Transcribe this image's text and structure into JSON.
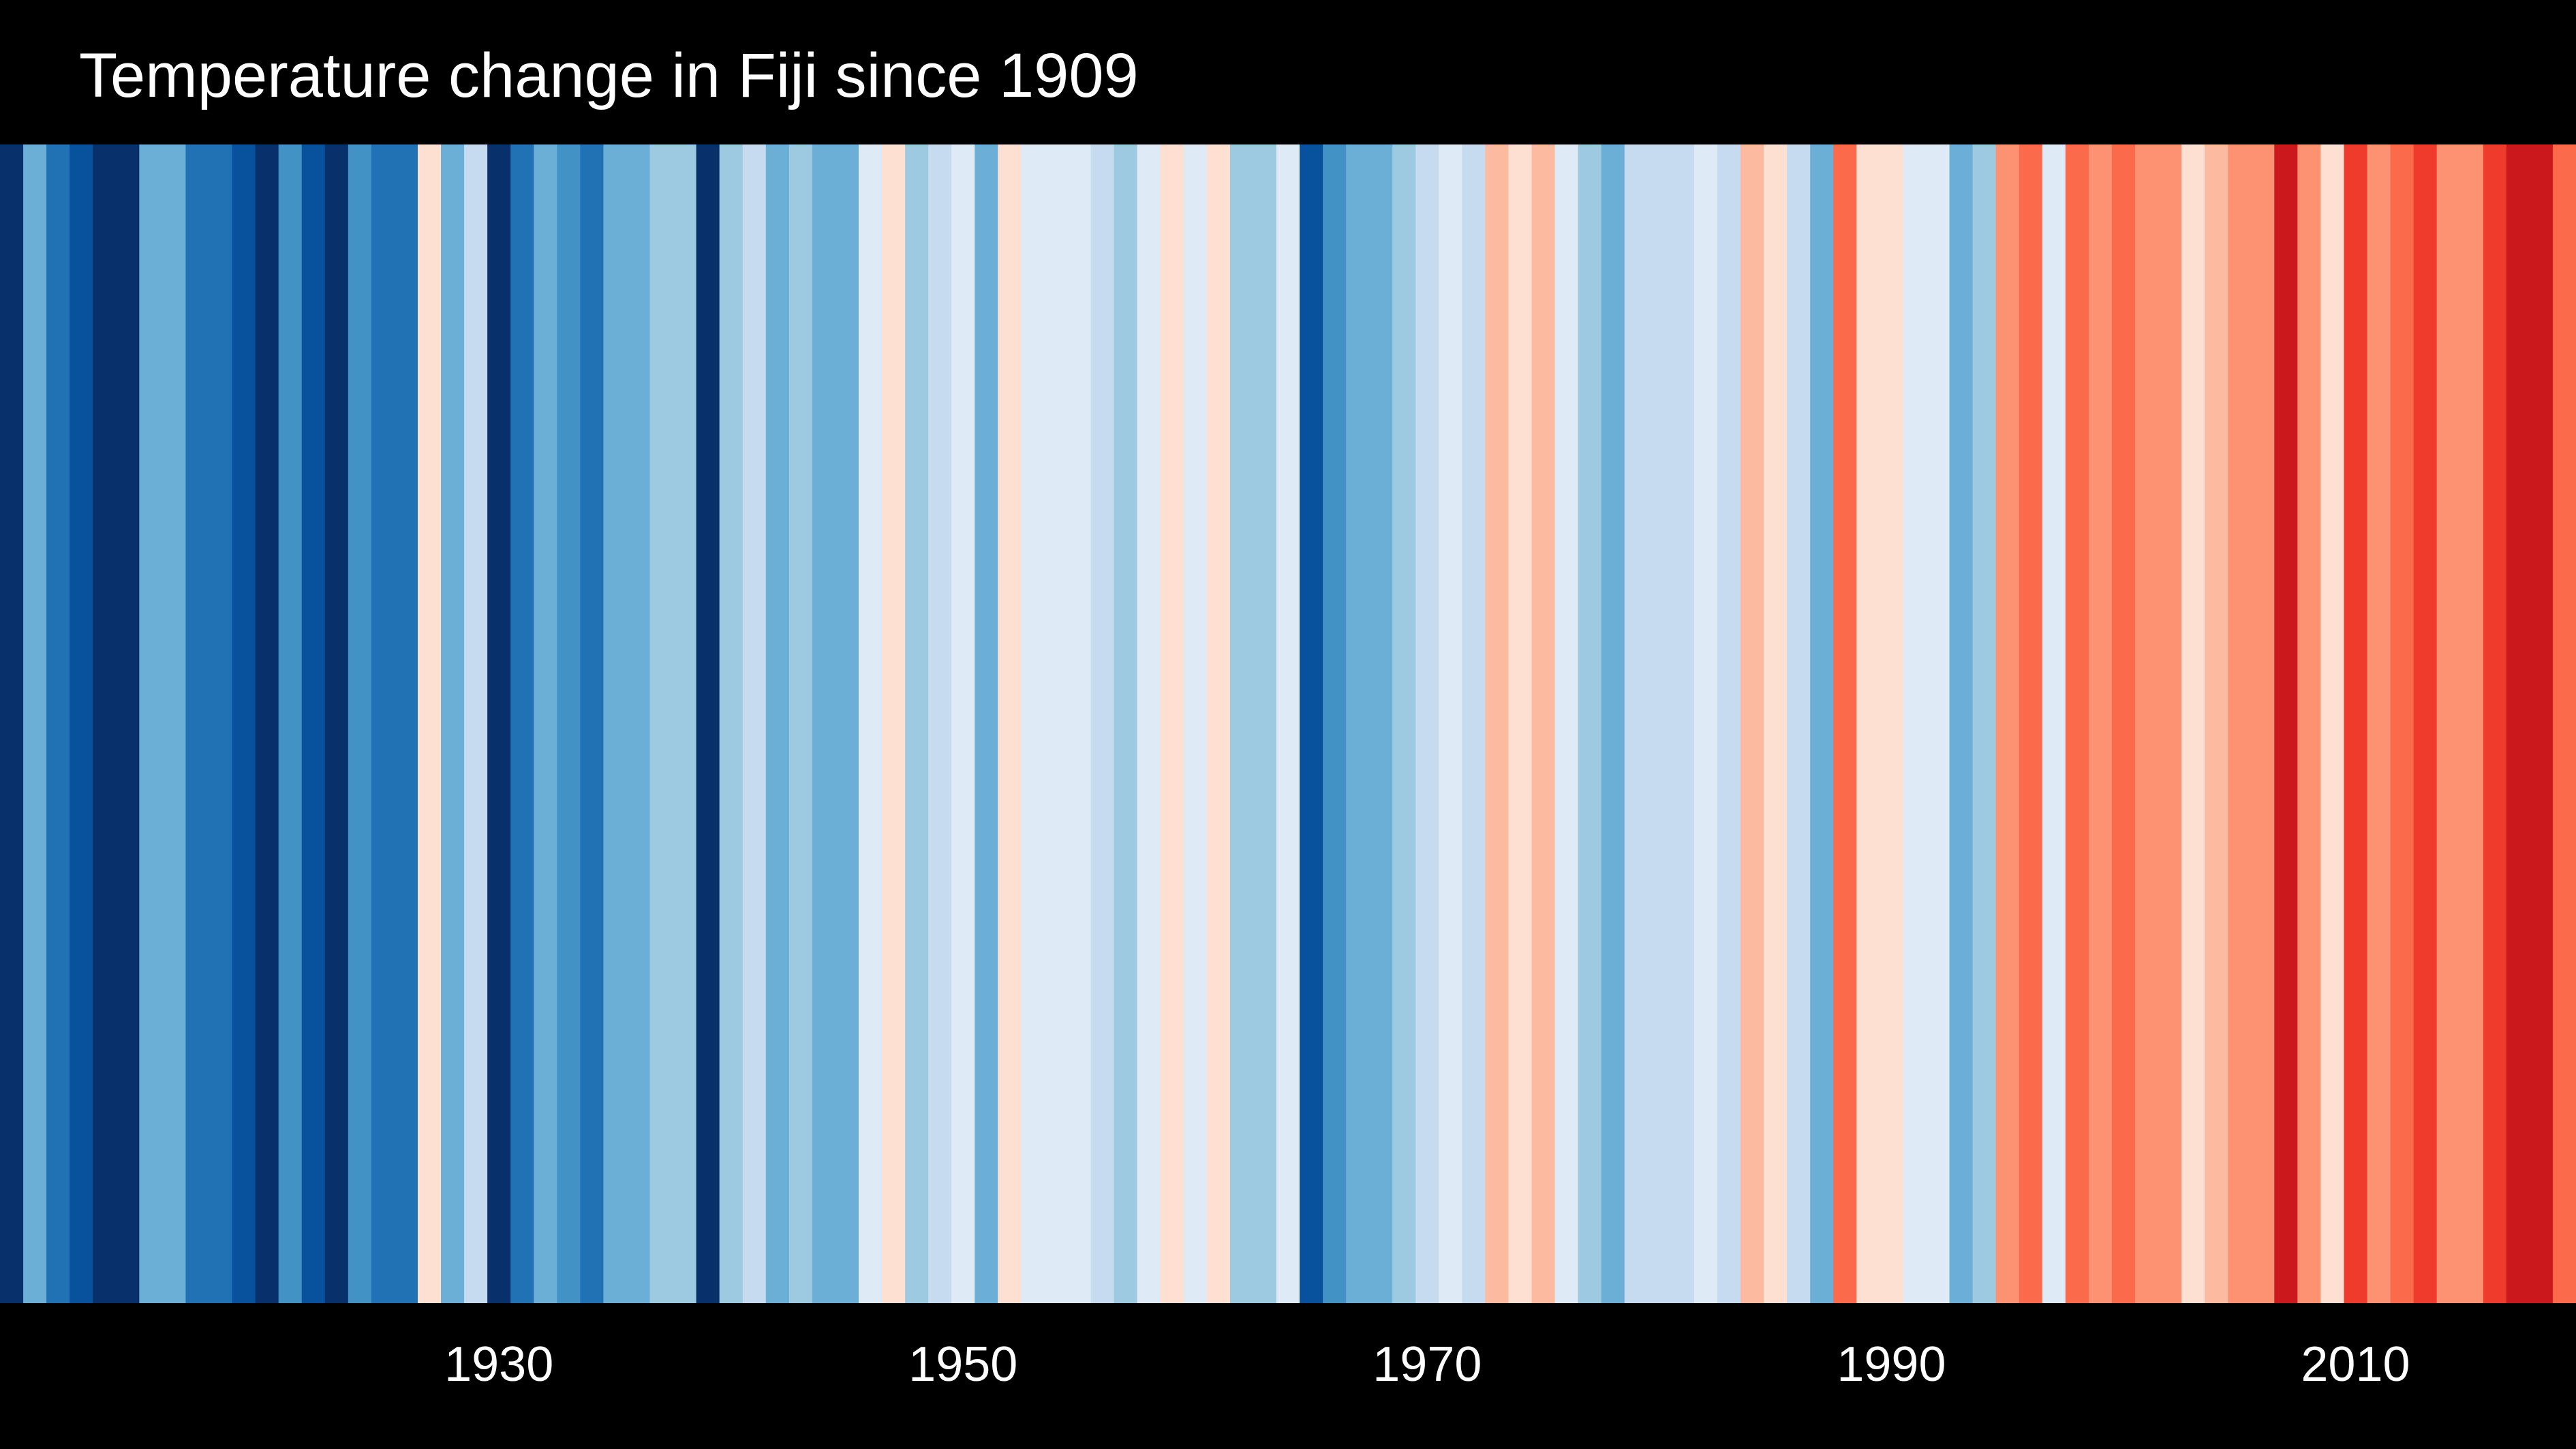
{
  "chart_data": {
    "type": "stripes",
    "title": "Temperature change in Fiji since 1909",
    "x": [
      1909,
      1910,
      1911,
      1912,
      1913,
      1914,
      1915,
      1916,
      1917,
      1918,
      1919,
      1920,
      1921,
      1922,
      1923,
      1924,
      1925,
      1926,
      1927,
      1928,
      1929,
      1930,
      1931,
      1932,
      1933,
      1934,
      1935,
      1936,
      1937,
      1938,
      1939,
      1940,
      1941,
      1942,
      1943,
      1944,
      1945,
      1946,
      1947,
      1948,
      1949,
      1950,
      1951,
      1952,
      1953,
      1954,
      1955,
      1956,
      1957,
      1958,
      1959,
      1960,
      1961,
      1962,
      1963,
      1964,
      1965,
      1966,
      1967,
      1968,
      1969,
      1970,
      1971,
      1972,
      1973,
      1974,
      1975,
      1976,
      1977,
      1978,
      1979,
      1980,
      1981,
      1982,
      1983,
      1984,
      1985,
      1986,
      1987,
      1988,
      1989,
      1990,
      1991,
      1992,
      1993,
      1994,
      1995,
      1996,
      1997,
      1998,
      1999,
      2000,
      2001,
      2002,
      2003,
      2004,
      2005,
      2006,
      2007,
      2008,
      2009,
      2010,
      2011,
      2012,
      2013,
      2014,
      2015,
      2016,
      2017,
      2018,
      2019
    ],
    "values": [
      -0.75,
      -0.35,
      -0.55,
      -0.65,
      -0.75,
      -0.75,
      -0.35,
      -0.35,
      -0.55,
      -0.55,
      -0.65,
      -0.75,
      -0.45,
      -0.65,
      -0.75,
      -0.45,
      -0.55,
      -0.55,
      0.05,
      -0.35,
      -0.15,
      -0.75,
      -0.55,
      -0.35,
      -0.45,
      -0.55,
      -0.35,
      -0.35,
      -0.25,
      -0.25,
      -0.75,
      -0.25,
      -0.15,
      -0.35,
      -0.25,
      -0.35,
      -0.35,
      -0.05,
      0.05,
      -0.25,
      -0.15,
      -0.05,
      -0.35,
      0.05,
      -0.05,
      -0.05,
      -0.05,
      -0.15,
      -0.25,
      -0.05,
      0.05,
      -0.05,
      0.05,
      -0.25,
      -0.25,
      -0.05,
      -0.65,
      -0.45,
      -0.35,
      -0.35,
      -0.25,
      -0.15,
      -0.05,
      -0.15,
      0.15,
      0.05,
      0.15,
      -0.05,
      -0.25,
      -0.35,
      -0.15,
      -0.15,
      -0.15,
      -0.05,
      -0.15,
      0.15,
      0.05,
      -0.15,
      -0.35,
      0.35,
      0.05,
      0.05,
      -0.05,
      -0.05,
      -0.35,
      -0.25,
      0.25,
      0.35,
      -0.05,
      0.35,
      0.25,
      0.35,
      0.25,
      0.25,
      0.05,
      0.15,
      0.25,
      0.25,
      0.55,
      0.25,
      0.05,
      0.45,
      0.25,
      0.35,
      0.45,
      0.25,
      0.25,
      0.45,
      0.55,
      0.55,
      0.35
    ],
    "xlim": [
      1909,
      2020
    ],
    "xticks": [
      1930,
      1950,
      1970,
      1990,
      2010
    ],
    "vlim": [
      -0.8,
      0.8
    ],
    "palette": [
      "#08306b",
      "#08519c",
      "#2171b5",
      "#4292c6",
      "#6baed6",
      "#9ecae1",
      "#c6dbef",
      "#deebf7",
      "#fee0d2",
      "#fcbba1",
      "#fc9272",
      "#fb6a4a",
      "#ef3b2c",
      "#cb181d",
      "#a50f15",
      "#67000d"
    ],
    "background": "#000000"
  }
}
